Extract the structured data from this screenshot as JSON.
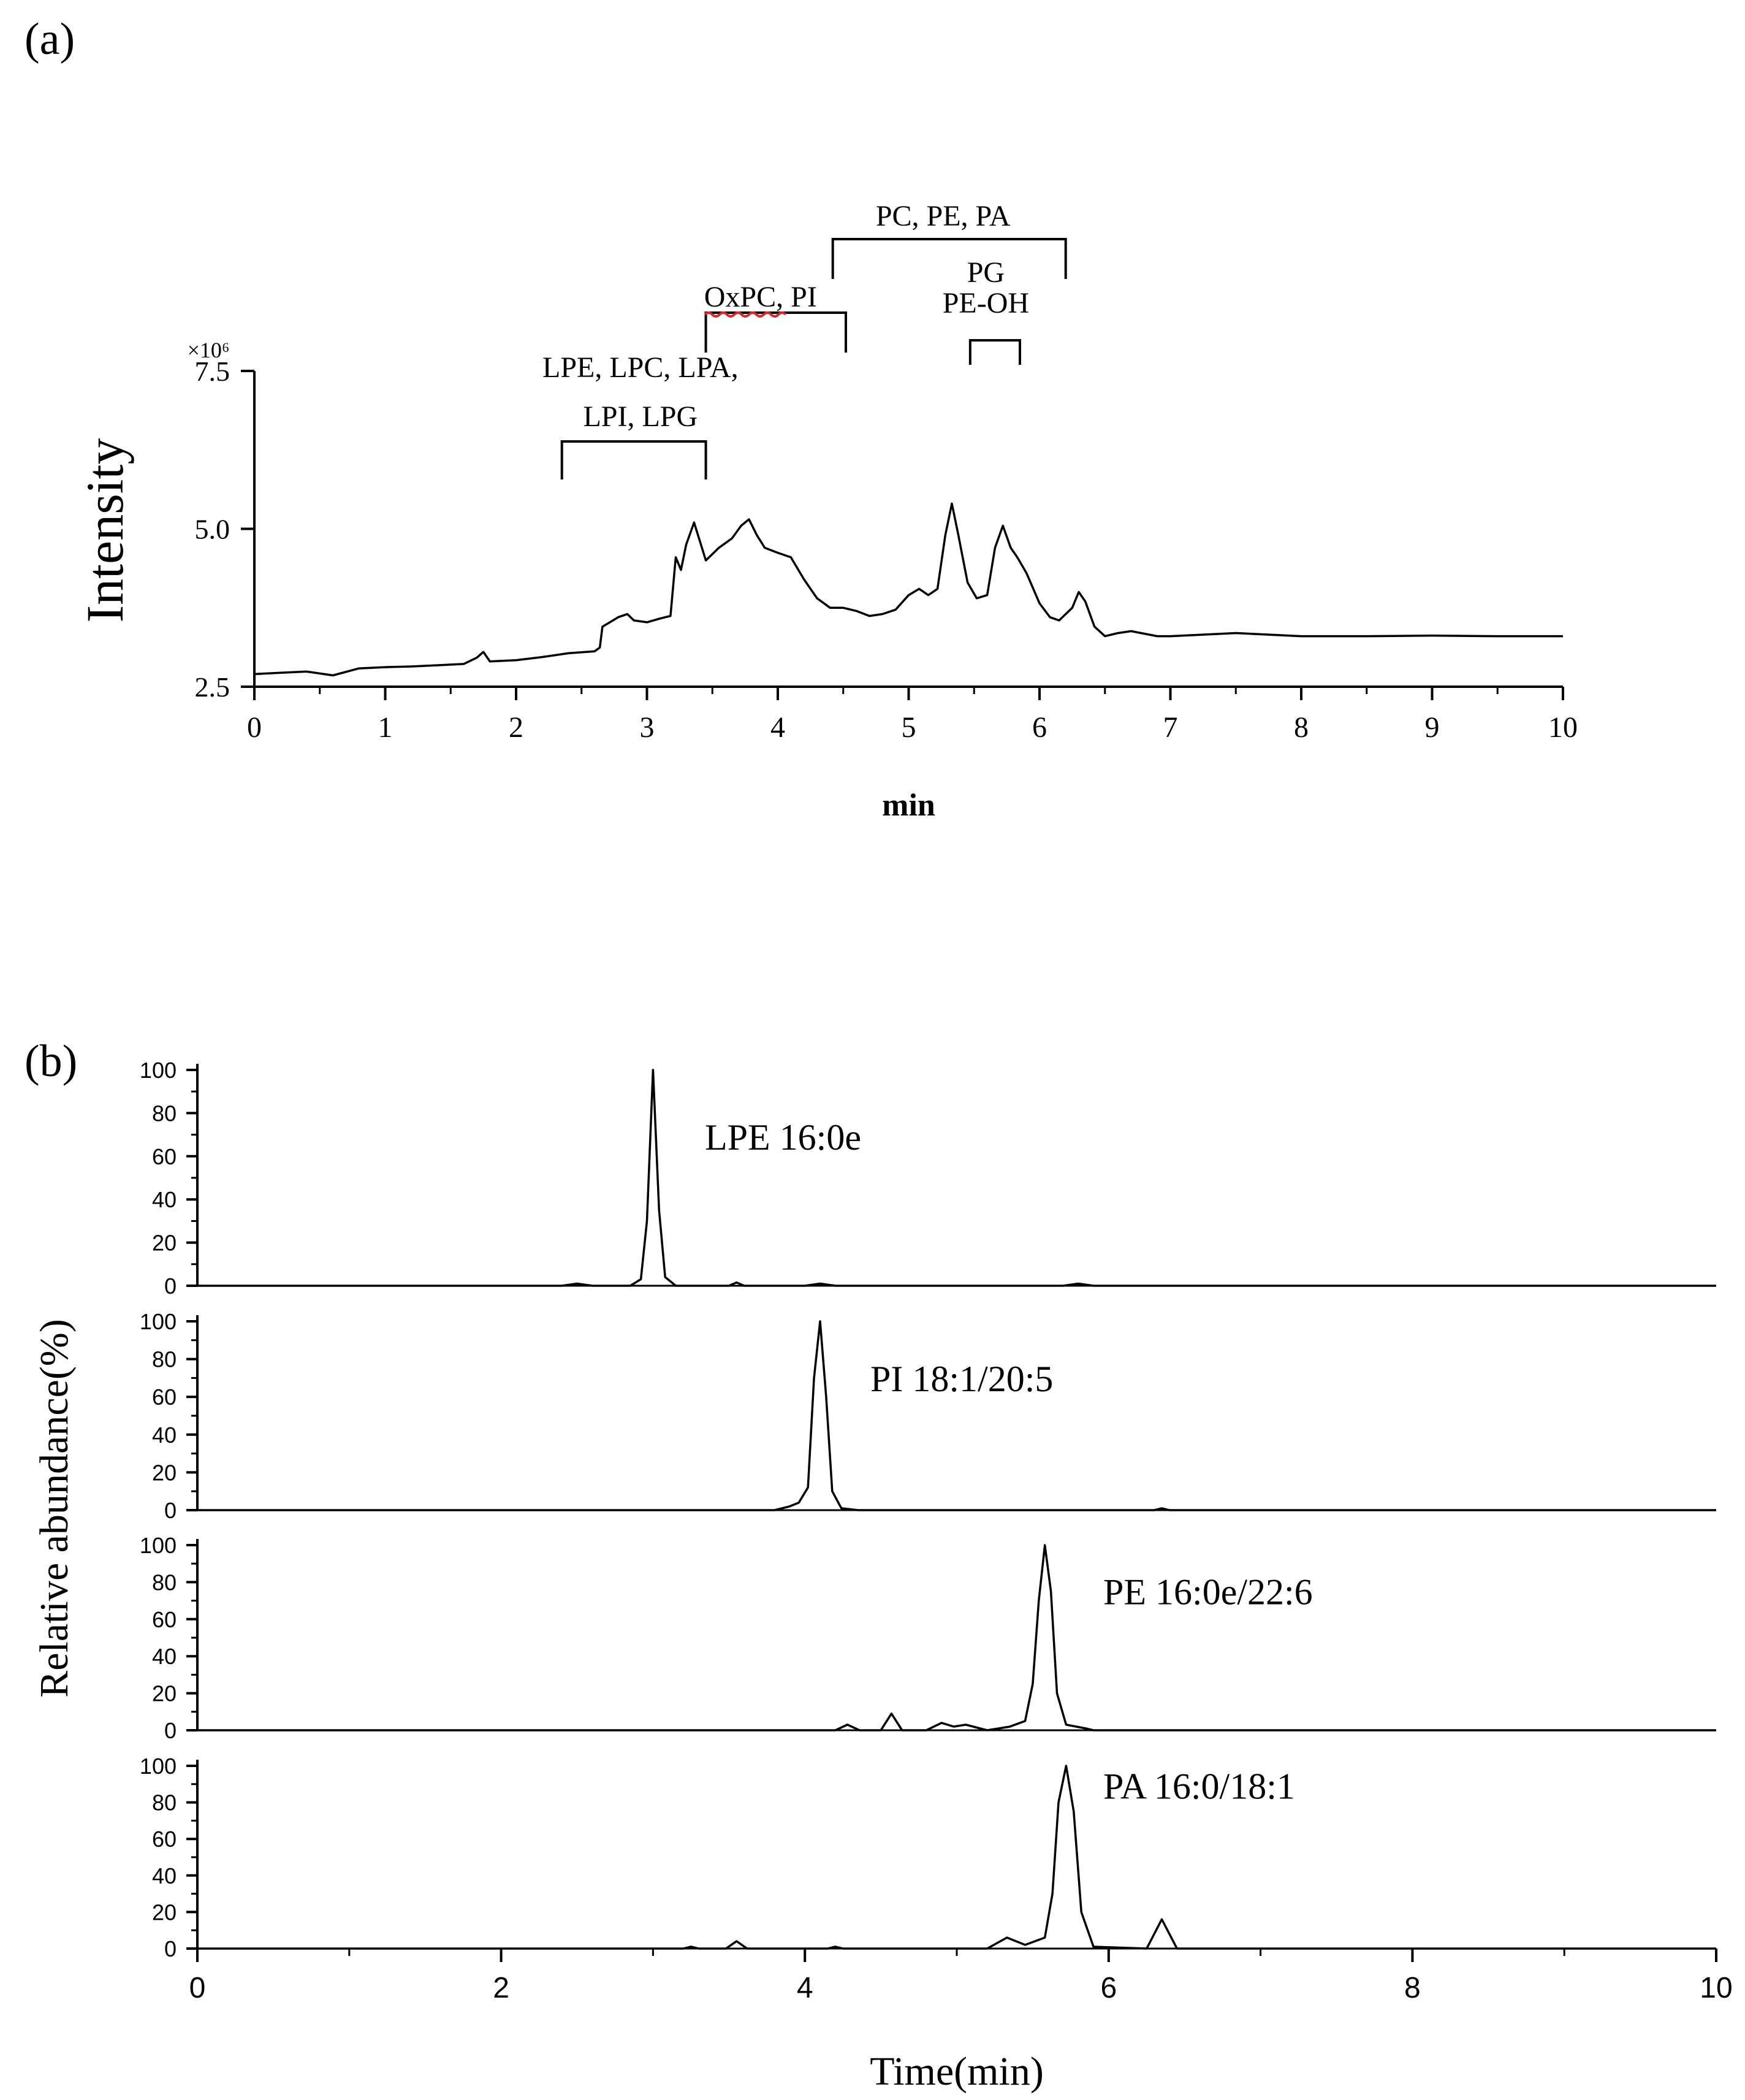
{
  "panel_labels": {
    "a": "(a)",
    "b": "(b)"
  },
  "chart_data": [
    {
      "type": "line",
      "panel": "(a)",
      "xlabel": "min",
      "ylabel": "Intensity",
      "y_multiplier": "×10⁶",
      "xlim": [
        0,
        10
      ],
      "ylim": [
        2.5,
        7.5
      ],
      "x_ticks": [
        "0",
        "1",
        "2",
        "3",
        "4",
        "5",
        "6",
        "7",
        "8",
        "9",
        "10"
      ],
      "y_ticks": [
        "2.5",
        "5.0",
        "7.5"
      ],
      "series": [
        {
          "x": [
            0,
            0.2,
            0.4,
            0.6,
            0.8,
            1.0,
            1.2,
            1.4,
            1.6,
            1.7,
            1.75,
            1.8,
            2.0,
            2.2,
            2.4,
            2.6,
            2.64,
            2.66,
            2.7,
            2.78,
            2.85,
            2.9,
            3.0,
            3.1,
            3.18,
            3.22,
            3.26,
            3.3,
            3.36,
            3.45,
            3.55,
            3.65,
            3.72,
            3.78,
            3.84,
            3.9,
            4.0,
            4.1,
            4.2,
            4.3,
            4.4,
            4.5,
            4.6,
            4.7,
            4.8,
            4.9,
            5.0,
            5.08,
            5.15,
            5.22,
            5.28,
            5.33,
            5.38,
            5.45,
            5.52,
            5.6,
            5.66,
            5.72,
            5.78,
            5.83,
            5.9,
            6.0,
            6.08,
            6.15,
            6.25,
            6.3,
            6.35,
            6.42,
            6.5,
            6.6,
            6.7,
            6.8,
            6.9,
            7.0,
            7.5,
            8.0,
            8.5,
            9.0,
            9.5,
            10.0
          ],
          "y": [
            2.7,
            2.72,
            2.74,
            2.68,
            2.79,
            2.81,
            2.82,
            2.84,
            2.86,
            2.96,
            3.05,
            2.9,
            2.92,
            2.97,
            3.03,
            3.06,
            3.12,
            3.45,
            3.5,
            3.6,
            3.65,
            3.55,
            3.52,
            3.58,
            3.62,
            4.55,
            4.35,
            4.75,
            5.1,
            4.5,
            4.7,
            4.85,
            5.05,
            5.15,
            4.9,
            4.7,
            4.62,
            4.55,
            4.2,
            3.9,
            3.75,
            3.75,
            3.7,
            3.62,
            3.65,
            3.72,
            3.95,
            4.05,
            3.95,
            4.05,
            4.9,
            5.4,
            4.9,
            4.15,
            3.9,
            3.95,
            4.7,
            5.05,
            4.7,
            4.55,
            4.3,
            3.82,
            3.6,
            3.55,
            3.75,
            4.0,
            3.85,
            3.45,
            3.3,
            3.35,
            3.38,
            3.34,
            3.3,
            3.3,
            3.35,
            3.3,
            3.3,
            3.31,
            3.3,
            3.3
          ]
        }
      ],
      "annotations": [
        {
          "label_lines": [
            "LPE, LPC, LPA,",
            "LPI, LPG"
          ],
          "range": [
            2.35,
            3.45
          ]
        },
        {
          "label_lines": [
            "OxPC, PI"
          ],
          "range": [
            3.45,
            4.52
          ]
        },
        {
          "label_lines": [
            "PC, PE,  PA"
          ],
          "range": [
            4.42,
            6.2
          ]
        },
        {
          "label_lines": [
            "PG",
            "PE-OH"
          ],
          "range": [
            5.47,
            5.85
          ]
        }
      ]
    },
    {
      "type": "line",
      "panel": "(b)",
      "xlabel": "Time(min)",
      "ylabel": "Relative abundance(%)",
      "xlim": [
        0,
        10
      ],
      "ylim": [
        0,
        100
      ],
      "x_ticks": [
        "0",
        "2",
        "4",
        "6",
        "8",
        "10"
      ],
      "y_ticks": [
        "0",
        "20",
        "40",
        "60",
        "80",
        "100"
      ],
      "series": [
        {
          "name": "LPE  16:0e",
          "x": [
            0,
            2.4,
            2.5,
            2.6,
            2.85,
            2.92,
            2.96,
            3.0,
            3.04,
            3.08,
            3.15,
            3.3,
            3.5,
            3.55,
            3.6,
            4.0,
            4.1,
            4.2,
            5.7,
            5.8,
            5.9,
            10
          ],
          "y": [
            0,
            0,
            1,
            0,
            0,
            3,
            30,
            100,
            35,
            4,
            0,
            0,
            0,
            1.5,
            0,
            0,
            1,
            0,
            0,
            1,
            0,
            0
          ]
        },
        {
          "name": "PI  18:1/20:5",
          "x": [
            0,
            3.8,
            3.9,
            3.96,
            4.02,
            4.06,
            4.1,
            4.14,
            4.18,
            4.24,
            4.35,
            6.3,
            6.35,
            6.4,
            10
          ],
          "y": [
            0,
            0,
            2,
            4,
            12,
            70,
            100,
            60,
            10,
            1,
            0,
            0,
            1,
            0,
            0
          ]
        },
        {
          "name": "PE  16:0e/22:6",
          "x": [
            0,
            4.2,
            4.28,
            4.36,
            4.5,
            4.57,
            4.64,
            4.8,
            4.9,
            4.98,
            5.06,
            5.2,
            5.35,
            5.45,
            5.5,
            5.54,
            5.58,
            5.62,
            5.66,
            5.72,
            5.85,
            5.9,
            10
          ],
          "y": [
            0,
            0,
            3,
            0,
            0,
            9,
            0,
            0,
            4,
            2,
            3,
            0,
            2,
            5,
            25,
            70,
            100,
            75,
            20,
            3,
            1,
            0,
            0
          ]
        },
        {
          "name": "PA  16:0/18:1",
          "x": [
            0,
            3.2,
            3.25,
            3.3,
            3.48,
            3.55,
            3.62,
            4.15,
            4.2,
            4.25,
            5.2,
            5.33,
            5.45,
            5.58,
            5.63,
            5.67,
            5.72,
            5.77,
            5.82,
            5.9,
            6.25,
            6.35,
            6.45,
            10
          ],
          "y": [
            0,
            0,
            1,
            0,
            0,
            4,
            0,
            0,
            1,
            0,
            0,
            6,
            2,
            6,
            30,
            80,
            100,
            75,
            20,
            1,
            0,
            16,
            0,
            0
          ]
        }
      ]
    }
  ]
}
